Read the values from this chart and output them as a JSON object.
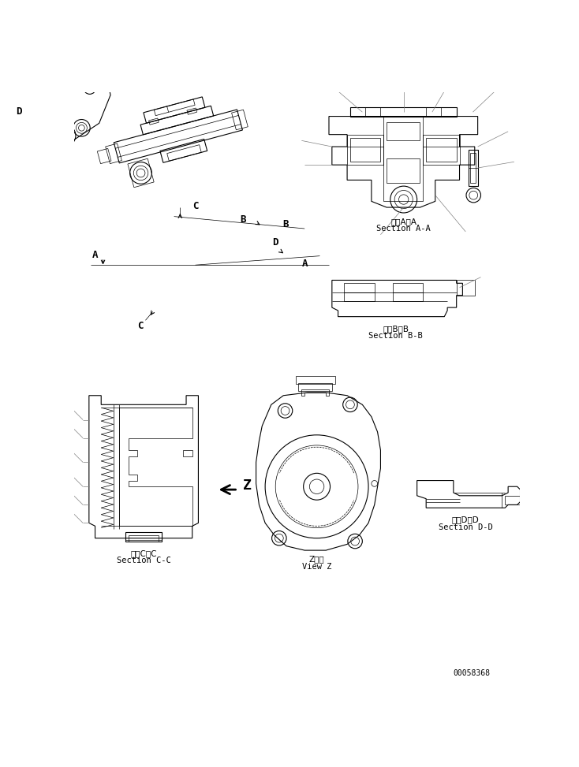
{
  "bg_color": "#ffffff",
  "line_color": "#000000",
  "fig_width": 7.34,
  "fig_height": 9.73,
  "dpi": 100,
  "labels": {
    "section_aa_jp": "断面A－A",
    "section_aa_en": "Section A-A",
    "section_bb_jp": "断面B－B",
    "section_bb_en": "Section B-B",
    "section_cc_jp": "断面C－C",
    "section_cc_en": "Section C-C",
    "section_dd_jp": "断面D－D",
    "section_dd_en": "Section D-D",
    "view_z_jp": "Z　視",
    "view_z_en": "View Z",
    "part_number": "00058368"
  },
  "font_size_label": 7.5,
  "font_size_partno": 7
}
